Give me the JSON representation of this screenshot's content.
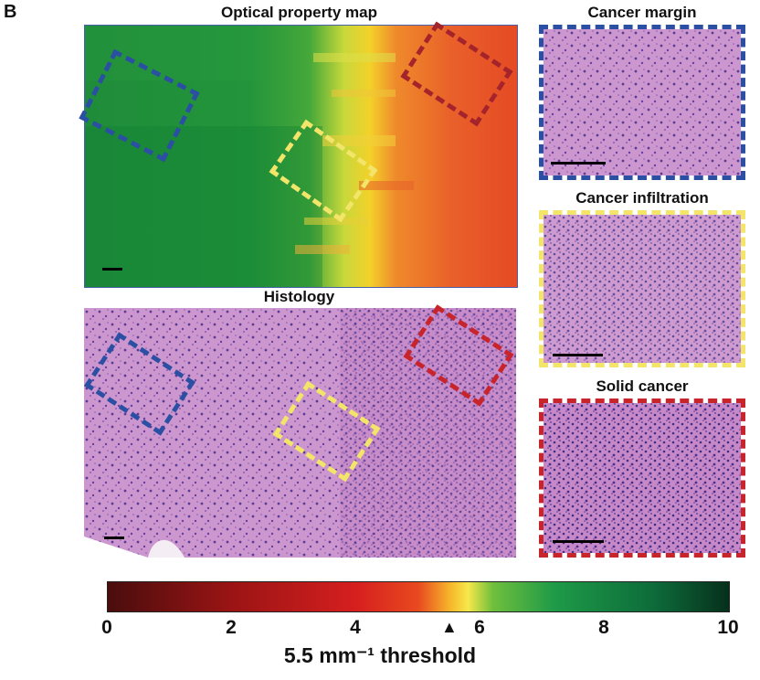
{
  "panel_letter": "B",
  "titles": {
    "optical_map": "Optical property map",
    "histology": "Histology",
    "cancer_margin": "Cancer margin",
    "cancer_infiltration": "Cancer infiltration",
    "solid_cancer": "Solid cancer"
  },
  "colors": {
    "blue_roi": "#2b4fa3",
    "yellow_roi": "#f2e56a",
    "red_roi": "#c8242b",
    "histology_base": "#c98fc9"
  },
  "colorbar": {
    "min": 0,
    "max": 10,
    "ticks": [
      "0",
      "2",
      "4",
      "6",
      "8",
      "10"
    ],
    "threshold_value": 5.5,
    "threshold_label": "5.5 mm⁻¹ threshold",
    "threshold_arrow": "arrow-up-icon"
  }
}
